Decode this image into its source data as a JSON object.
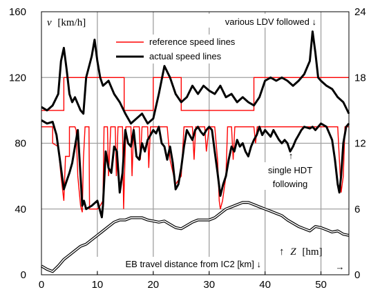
{
  "chart_data": {
    "type": "line",
    "x_range": [
      0,
      55
    ],
    "y_left_range": [
      0,
      160
    ],
    "y_right_range": [
      0,
      24
    ],
    "x_ticks": [
      "0",
      "10",
      "20",
      "30",
      "40",
      "50"
    ],
    "y_left_ticks": [
      "0",
      "40",
      "80",
      "120",
      "160"
    ],
    "y_right_ticks": [
      "0",
      "6",
      "12",
      "18",
      "24"
    ],
    "grid": true,
    "y_left_label": "v [km/h]",
    "y_left_label_var": "v",
    "y_left_label_unit": "[km/h]",
    "z_label": "↑ Z [hm]",
    "z_label_arrow": "↑",
    "z_label_var": "Z",
    "z_label_unit": "[hm]",
    "x_label": "EB travel distance from IC2 [km] ↓",
    "x_arrow": "→",
    "legend": [
      {
        "name": "reference speed lines",
        "color": "#ff0000"
      },
      {
        "name": "actual speed lines",
        "color": "#000000"
      }
    ],
    "annotations": {
      "ldv": "various LDV followed ↓",
      "hdt_arrow": "↑",
      "hdt_line1": "single HDT",
      "hdt_line2": "following"
    },
    "colors": {
      "reference": "#ff0000",
      "actual": "#000000",
      "grid": "#a0a0a0",
      "elevation": "#000000"
    },
    "series": [
      {
        "name": "reference speed lines",
        "axis": "left",
        "color": "#ff0000",
        "points": [
          [
            0,
            100
          ],
          [
            4,
            100
          ],
          [
            4,
            120
          ],
          [
            14.8,
            120
          ],
          [
            14.8,
            100
          ],
          [
            20,
            100
          ],
          [
            20,
            120
          ],
          [
            25,
            120
          ],
          [
            25,
            100
          ],
          [
            38,
            100
          ],
          [
            38,
            120
          ],
          [
            55,
            120
          ]
        ]
      },
      {
        "name": "reference speed lines",
        "axis": "left",
        "color": "#ff0000",
        "points": [
          [
            0,
            90
          ],
          [
            2,
            90
          ],
          [
            2,
            80
          ],
          [
            3,
            78
          ],
          [
            3.5,
            60
          ],
          [
            4,
            45
          ],
          [
            4.3,
            72
          ],
          [
            5,
            72
          ],
          [
            5,
            90
          ],
          [
            6,
            90
          ],
          [
            6.2,
            88
          ],
          [
            6.5,
            60
          ],
          [
            7,
            42
          ],
          [
            7.3,
            38
          ],
          [
            7.5,
            70
          ],
          [
            7.8,
            90
          ],
          [
            8.5,
            90
          ],
          [
            8.6,
            40
          ],
          [
            10,
            40
          ],
          [
            10.5,
            42
          ],
          [
            11,
            45
          ],
          [
            11.2,
            90
          ],
          [
            11.8,
            90
          ],
          [
            12,
            60
          ],
          [
            12.4,
            90
          ],
          [
            13.2,
            90
          ],
          [
            13.4,
            60
          ],
          [
            13.7,
            90
          ],
          [
            14.5,
            90
          ],
          [
            14.7,
            40
          ],
          [
            15.1,
            90
          ],
          [
            16,
            90
          ],
          [
            16.2,
            60
          ],
          [
            16.5,
            90
          ],
          [
            17.5,
            90
          ],
          [
            17.7,
            70
          ],
          [
            18,
            90
          ],
          [
            19,
            90
          ],
          [
            19.2,
            65
          ],
          [
            19.5,
            90
          ],
          [
            22,
            90
          ],
          [
            22.5,
            90
          ],
          [
            23,
            70
          ],
          [
            24,
            55
          ],
          [
            25,
            60
          ],
          [
            25.5,
            90
          ],
          [
            27,
            90
          ],
          [
            27.3,
            70
          ],
          [
            27.6,
            90
          ],
          [
            29.2,
            90
          ],
          [
            29.5,
            75
          ],
          [
            30,
            90
          ],
          [
            31,
            90
          ],
          [
            31.5,
            70
          ],
          [
            31.8,
            45
          ],
          [
            32,
            40
          ],
          [
            32.4,
            45
          ],
          [
            33,
            60
          ],
          [
            33.3,
            90
          ],
          [
            34,
            90
          ],
          [
            34.3,
            70
          ],
          [
            34.6,
            90
          ],
          [
            37.5,
            90
          ],
          [
            38,
            90
          ],
          [
            38.3,
            80
          ],
          [
            38.6,
            90
          ],
          [
            40,
            90
          ],
          [
            42,
            90
          ],
          [
            52,
            90
          ],
          [
            53,
            90
          ],
          [
            53.3,
            70
          ],
          [
            53.6,
            50
          ],
          [
            54,
            60
          ],
          [
            54.3,
            90
          ],
          [
            55,
            90
          ]
        ]
      },
      {
        "name": "actual speed lines",
        "axis": "left",
        "color": "#000000",
        "points": [
          [
            0,
            102
          ],
          [
            1,
            100
          ],
          [
            2,
            103
          ],
          [
            3,
            110
          ],
          [
            3.5,
            130
          ],
          [
            4,
            138
          ],
          [
            4.5,
            125
          ],
          [
            5,
            110
          ],
          [
            5.5,
            105
          ],
          [
            6,
            108
          ],
          [
            7,
            100
          ],
          [
            7.5,
            98
          ],
          [
            8,
            120
          ],
          [
            9,
            133
          ],
          [
            9.5,
            143
          ],
          [
            10,
            130
          ],
          [
            10.5,
            120
          ],
          [
            11,
            115
          ],
          [
            12,
            118
          ],
          [
            13,
            110
          ],
          [
            14,
            105
          ],
          [
            15,
            98
          ],
          [
            16,
            92
          ],
          [
            17,
            95
          ],
          [
            18,
            98
          ],
          [
            19,
            92
          ],
          [
            20,
            95
          ],
          [
            21,
            110
          ],
          [
            22,
            127
          ],
          [
            23,
            120
          ],
          [
            24,
            110
          ],
          [
            25,
            105
          ],
          [
            26,
            108
          ],
          [
            27,
            115
          ],
          [
            28,
            110
          ],
          [
            29,
            115
          ],
          [
            30,
            112
          ],
          [
            31,
            110
          ],
          [
            32,
            115
          ],
          [
            33,
            108
          ],
          [
            34,
            110
          ],
          [
            35,
            105
          ],
          [
            36,
            108
          ],
          [
            37,
            105
          ],
          [
            38,
            103
          ],
          [
            39,
            108
          ],
          [
            40,
            118
          ],
          [
            41,
            120
          ],
          [
            42,
            118
          ],
          [
            43,
            120
          ],
          [
            44,
            118
          ],
          [
            45,
            115
          ],
          [
            46,
            118
          ],
          [
            47,
            122
          ],
          [
            48,
            130
          ],
          [
            48.5,
            148
          ],
          [
            49,
            135
          ],
          [
            49.5,
            120
          ],
          [
            50,
            118
          ],
          [
            51,
            115
          ],
          [
            52,
            113
          ],
          [
            53,
            108
          ],
          [
            54,
            105
          ],
          [
            55,
            98
          ]
        ]
      },
      {
        "name": "actual speed lines",
        "axis": "left",
        "color": "#000000",
        "points": [
          [
            0,
            94
          ],
          [
            1,
            92
          ],
          [
            2,
            93
          ],
          [
            2.7,
            85
          ],
          [
            3.3,
            70
          ],
          [
            4,
            52
          ],
          [
            4.5,
            57
          ],
          [
            5,
            62
          ],
          [
            5.5,
            68
          ],
          [
            6,
            78
          ],
          [
            6.5,
            88
          ],
          [
            7,
            60
          ],
          [
            7.3,
            42
          ],
          [
            7.6,
            45
          ],
          [
            8,
            40
          ],
          [
            9,
            42
          ],
          [
            10,
            45
          ],
          [
            10.8,
            35
          ],
          [
            11,
            42
          ],
          [
            11.5,
            75
          ],
          [
            12,
            65
          ],
          [
            12.5,
            62
          ],
          [
            13,
            78
          ],
          [
            13.5,
            75
          ],
          [
            14,
            50
          ],
          [
            14.5,
            62
          ],
          [
            15,
            88
          ],
          [
            15.5,
            80
          ],
          [
            16,
            78
          ],
          [
            16.5,
            88
          ],
          [
            17,
            72
          ],
          [
            17.5,
            70
          ],
          [
            18,
            80
          ],
          [
            18.5,
            75
          ],
          [
            19,
            82
          ],
          [
            19.5,
            85
          ],
          [
            20,
            88
          ],
          [
            20.5,
            86
          ],
          [
            21,
            90
          ],
          [
            21.5,
            80
          ],
          [
            22,
            78
          ],
          [
            22.5,
            70
          ],
          [
            23,
            78
          ],
          [
            23.5,
            68
          ],
          [
            24,
            52
          ],
          [
            24.5,
            55
          ],
          [
            25,
            65
          ],
          [
            25.5,
            78
          ],
          [
            26,
            88
          ],
          [
            26.5,
            85
          ],
          [
            27,
            82
          ],
          [
            27.5,
            88
          ],
          [
            28,
            90
          ],
          [
            28.5,
            87
          ],
          [
            29,
            85
          ],
          [
            29.5,
            88
          ],
          [
            30,
            90
          ],
          [
            30.5,
            88
          ],
          [
            31,
            75
          ],
          [
            31.5,
            62
          ],
          [
            32,
            48
          ],
          [
            32.5,
            55
          ],
          [
            33,
            60
          ],
          [
            33.5,
            70
          ],
          [
            34,
            78
          ],
          [
            34.5,
            75
          ],
          [
            35,
            82
          ],
          [
            35.5,
            78
          ],
          [
            36,
            80
          ],
          [
            36.5,
            75
          ],
          [
            37,
            72
          ],
          [
            37.5,
            78
          ],
          [
            38,
            82
          ],
          [
            38.5,
            85
          ],
          [
            39,
            90
          ],
          [
            39.5,
            85
          ],
          [
            40,
            88
          ],
          [
            41,
            84
          ],
          [
            41.5,
            88
          ],
          [
            42,
            85
          ],
          [
            42.5,
            82
          ],
          [
            43,
            80
          ],
          [
            43.5,
            82
          ],
          [
            44,
            80
          ],
          [
            44.5,
            75
          ],
          [
            45,
            78
          ],
          [
            45.5,
            82
          ],
          [
            46,
            85
          ],
          [
            46.5,
            88
          ],
          [
            47,
            90
          ],
          [
            48,
            89
          ],
          [
            48.5,
            90
          ],
          [
            49,
            88
          ],
          [
            49.5,
            90
          ],
          [
            50,
            92
          ],
          [
            51,
            90
          ],
          [
            52,
            82
          ],
          [
            52.5,
            70
          ],
          [
            53,
            55
          ],
          [
            53.3,
            50
          ],
          [
            53.6,
            60
          ],
          [
            54,
            80
          ],
          [
            54.5,
            90
          ],
          [
            55,
            92
          ]
        ]
      },
      {
        "name": "elevation Z",
        "axis": "right",
        "color": "#000000",
        "points": [
          [
            0,
            0.8
          ],
          [
            1,
            0.5
          ],
          [
            2,
            0.3
          ],
          [
            3,
            0.8
          ],
          [
            4,
            1.4
          ],
          [
            5,
            1.8
          ],
          [
            6,
            2.2
          ],
          [
            7,
            2.6
          ],
          [
            8,
            2.8
          ],
          [
            9,
            3.2
          ],
          [
            10,
            3.6
          ],
          [
            11,
            4.0
          ],
          [
            12,
            4.4
          ],
          [
            13,
            4.8
          ],
          [
            14,
            5.0
          ],
          [
            15,
            5.0
          ],
          [
            16,
            5.2
          ],
          [
            17,
            5.2
          ],
          [
            18,
            5.2
          ],
          [
            19,
            5.0
          ],
          [
            20,
            4.9
          ],
          [
            21,
            4.8
          ],
          [
            22,
            4.9
          ],
          [
            23,
            4.6
          ],
          [
            24,
            4.3
          ],
          [
            25,
            4.2
          ],
          [
            26,
            4.5
          ],
          [
            27,
            4.8
          ],
          [
            28,
            5.0
          ],
          [
            29,
            5.0
          ],
          [
            30,
            5.0
          ],
          [
            31,
            5.2
          ],
          [
            32,
            5.6
          ],
          [
            33,
            6.0
          ],
          [
            34,
            6.2
          ],
          [
            35,
            6.4
          ],
          [
            36,
            6.6
          ],
          [
            37,
            6.6
          ],
          [
            38,
            6.4
          ],
          [
            39,
            6.2
          ],
          [
            40,
            6.0
          ],
          [
            41,
            5.8
          ],
          [
            42,
            5.6
          ],
          [
            43,
            5.4
          ],
          [
            44,
            5.0
          ],
          [
            45,
            4.7
          ],
          [
            46,
            4.4
          ],
          [
            47,
            4.2
          ],
          [
            48,
            4.0
          ],
          [
            49,
            4.4
          ],
          [
            50,
            4.3
          ],
          [
            51,
            4.1
          ],
          [
            52,
            3.9
          ],
          [
            53,
            4.0
          ],
          [
            54,
            3.7
          ],
          [
            55,
            3.6
          ]
        ]
      }
    ]
  }
}
